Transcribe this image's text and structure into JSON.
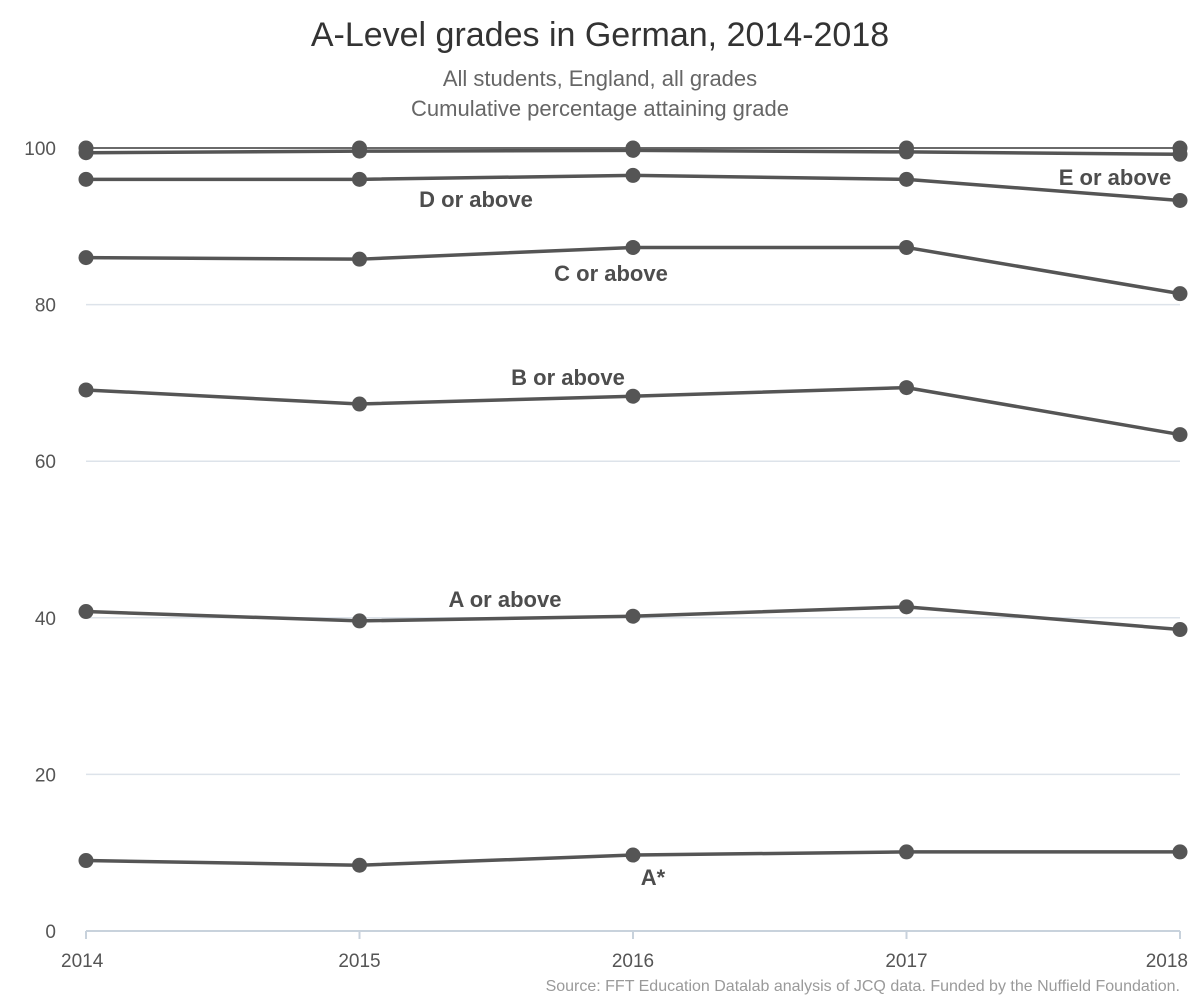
{
  "chart_data": {
    "type": "line",
    "title": "A-Level grades in German, 2014-2018",
    "subtitle_lines": [
      "All students, England, all grades",
      "Cumulative percentage attaining grade"
    ],
    "source": "Source: FFT Education Datalab analysis of JCQ data. Funded by the Nuffield Foundation.",
    "x": [
      "2014",
      "2015",
      "2016",
      "2017",
      "2018"
    ],
    "yticks": [
      "0",
      "20",
      "40",
      "60",
      "80",
      "100"
    ],
    "ylim": [
      0,
      100
    ],
    "grid": true,
    "line_color": "#555555",
    "grid_color": "#dde3ea",
    "axis_color": "#c8d2dc",
    "series": [
      {
        "name": "",
        "values": [
          100,
          100,
          100,
          100,
          100
        ]
      },
      {
        "name": "E or above",
        "values": [
          99.4,
          99.6,
          99.7,
          99.5,
          99.2
        ]
      },
      {
        "name": "D or above",
        "values": [
          96.0,
          96.0,
          96.5,
          96.0,
          93.3
        ]
      },
      {
        "name": "C or above",
        "values": [
          86.0,
          85.8,
          87.3,
          87.3,
          81.4
        ]
      },
      {
        "name": "B or above",
        "values": [
          69.1,
          67.3,
          68.3,
          69.4,
          63.4
        ]
      },
      {
        "name": "A or above",
        "values": [
          40.8,
          39.6,
          40.2,
          41.4,
          38.5
        ]
      },
      {
        "name": "A*",
        "values": [
          9.0,
          8.4,
          9.7,
          10.1,
          10.1
        ]
      }
    ]
  }
}
